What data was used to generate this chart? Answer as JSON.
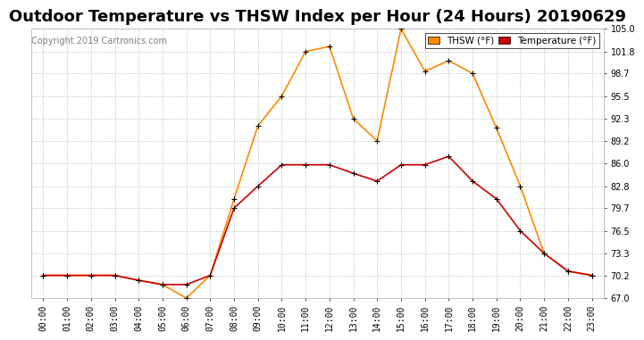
{
  "title": "Outdoor Temperature vs THSW Index per Hour (24 Hours) 20190629",
  "copyright": "Copyright 2019 Cartronics.com",
  "hours": [
    "00:00",
    "01:00",
    "02:00",
    "03:00",
    "04:00",
    "05:00",
    "06:00",
    "07:00",
    "08:00",
    "09:00",
    "10:00",
    "11:00",
    "12:00",
    "13:00",
    "14:00",
    "15:00",
    "16:00",
    "17:00",
    "18:00",
    "19:00",
    "20:00",
    "21:00",
    "22:00",
    "23:00"
  ],
  "temperature": [
    70.2,
    70.2,
    70.2,
    70.2,
    69.5,
    68.9,
    68.9,
    70.2,
    79.7,
    82.8,
    85.8,
    85.8,
    85.8,
    84.6,
    83.5,
    85.8,
    85.8,
    87.0,
    83.5,
    81.0,
    76.5,
    73.3,
    70.8,
    70.2
  ],
  "thsw": [
    70.2,
    70.2,
    70.2,
    70.2,
    69.5,
    68.9,
    67.0,
    70.2,
    81.0,
    91.3,
    95.5,
    101.8,
    102.5,
    92.3,
    89.2,
    105.0,
    99.0,
    100.5,
    98.7,
    91.0,
    82.8,
    73.3,
    70.8,
    70.2
  ],
  "temp_color": "#cc0000",
  "thsw_color": "#ff8800",
  "ylim_min": 67.0,
  "ylim_max": 105.0,
  "yticks": [
    67.0,
    70.2,
    73.3,
    76.5,
    79.7,
    82.8,
    86.0,
    89.2,
    92.3,
    95.5,
    98.7,
    101.8,
    105.0
  ],
  "background_color": "#ffffff",
  "grid_color": "#bbbbbb",
  "title_fontsize": 13,
  "legend_thsw_bg": "#ff8800",
  "legend_temp_bg": "#cc0000",
  "legend_thsw_label": "THSW (°F)",
  "legend_temp_label": "Temperature (°F)"
}
